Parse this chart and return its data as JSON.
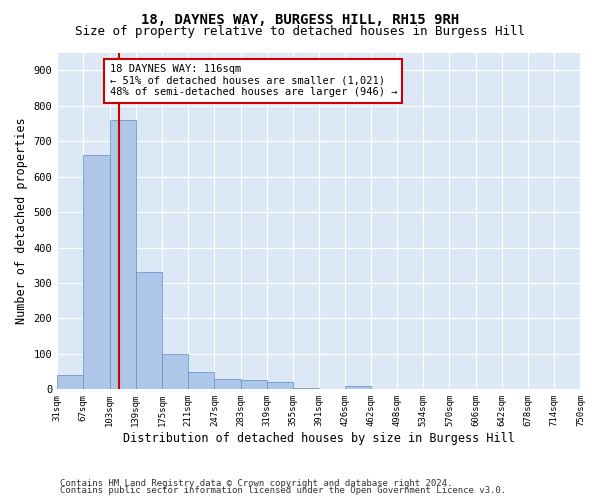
{
  "title": "18, DAYNES WAY, BURGESS HILL, RH15 9RH",
  "subtitle": "Size of property relative to detached houses in Burgess Hill",
  "xlabel": "Distribution of detached houses by size in Burgess Hill",
  "ylabel": "Number of detached properties",
  "footer_line1": "Contains HM Land Registry data © Crown copyright and database right 2024.",
  "footer_line2": "Contains public sector information licensed under the Open Government Licence v3.0.",
  "bin_edges": [
    31,
    67,
    103,
    139,
    175,
    211,
    247,
    283,
    319,
    355,
    391,
    426,
    462,
    498,
    534,
    570,
    606,
    642,
    678,
    714,
    750
  ],
  "bin_labels": [
    "31sqm",
    "67sqm",
    "103sqm",
    "139sqm",
    "175sqm",
    "211sqm",
    "247sqm",
    "283sqm",
    "319sqm",
    "355sqm",
    "391sqm",
    "426sqm",
    "462sqm",
    "498sqm",
    "534sqm",
    "570sqm",
    "606sqm",
    "642sqm",
    "678sqm",
    "714sqm",
    "750sqm"
  ],
  "bar_heights": [
    40,
    660,
    760,
    330,
    100,
    50,
    30,
    25,
    20,
    5,
    0,
    10,
    0,
    0,
    0,
    0,
    0,
    0,
    0,
    0
  ],
  "bar_color": "#aec6e8",
  "bar_edge_color": "#5a8fc4",
  "property_size": 116,
  "property_line_color": "#cc0000",
  "annotation_text": "18 DAYNES WAY: 116sqm\n← 51% of detached houses are smaller (1,021)\n48% of semi-detached houses are larger (946) →",
  "annotation_box_color": "#ffffff",
  "annotation_box_edge_color": "#cc0000",
  "ylim": [
    0,
    950
  ],
  "yticks": [
    0,
    100,
    200,
    300,
    400,
    500,
    600,
    700,
    800,
    900
  ],
  "background_color": "#dce8f5",
  "grid_color": "#ffffff",
  "title_fontsize": 10,
  "subtitle_fontsize": 9,
  "label_fontsize": 8.5,
  "footer_fontsize": 6.5
}
